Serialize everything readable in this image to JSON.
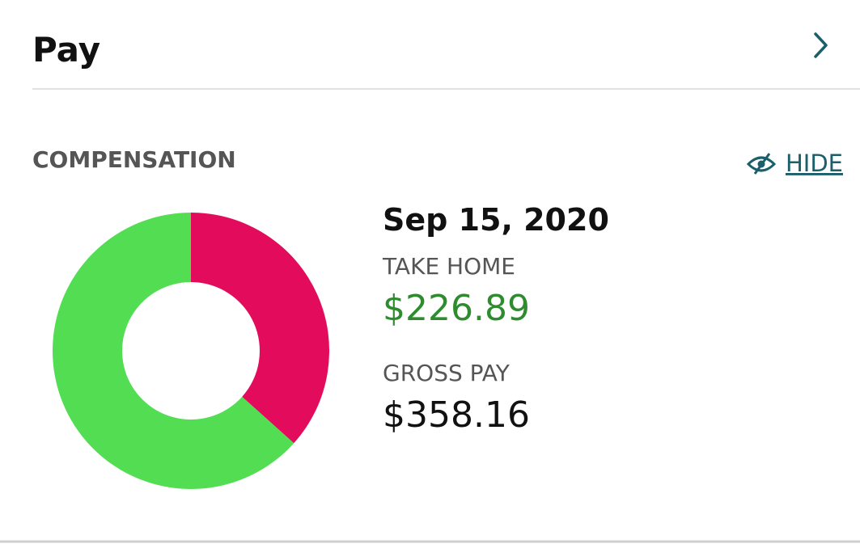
{
  "header": {
    "title": "Pay"
  },
  "section": {
    "title": "COMPENSATION",
    "hide": "HIDE",
    "date": "Sep 15, 2020",
    "take_home_label": "TAKE HOME",
    "take_home": "$226.89",
    "gross_label": "GROSS PAY",
    "gross": "$358.16"
  },
  "chart_data": {
    "type": "pie",
    "values": [
      131.27,
      226.89
    ],
    "colors": [
      "#e30b5c",
      "#52dd52"
    ]
  }
}
